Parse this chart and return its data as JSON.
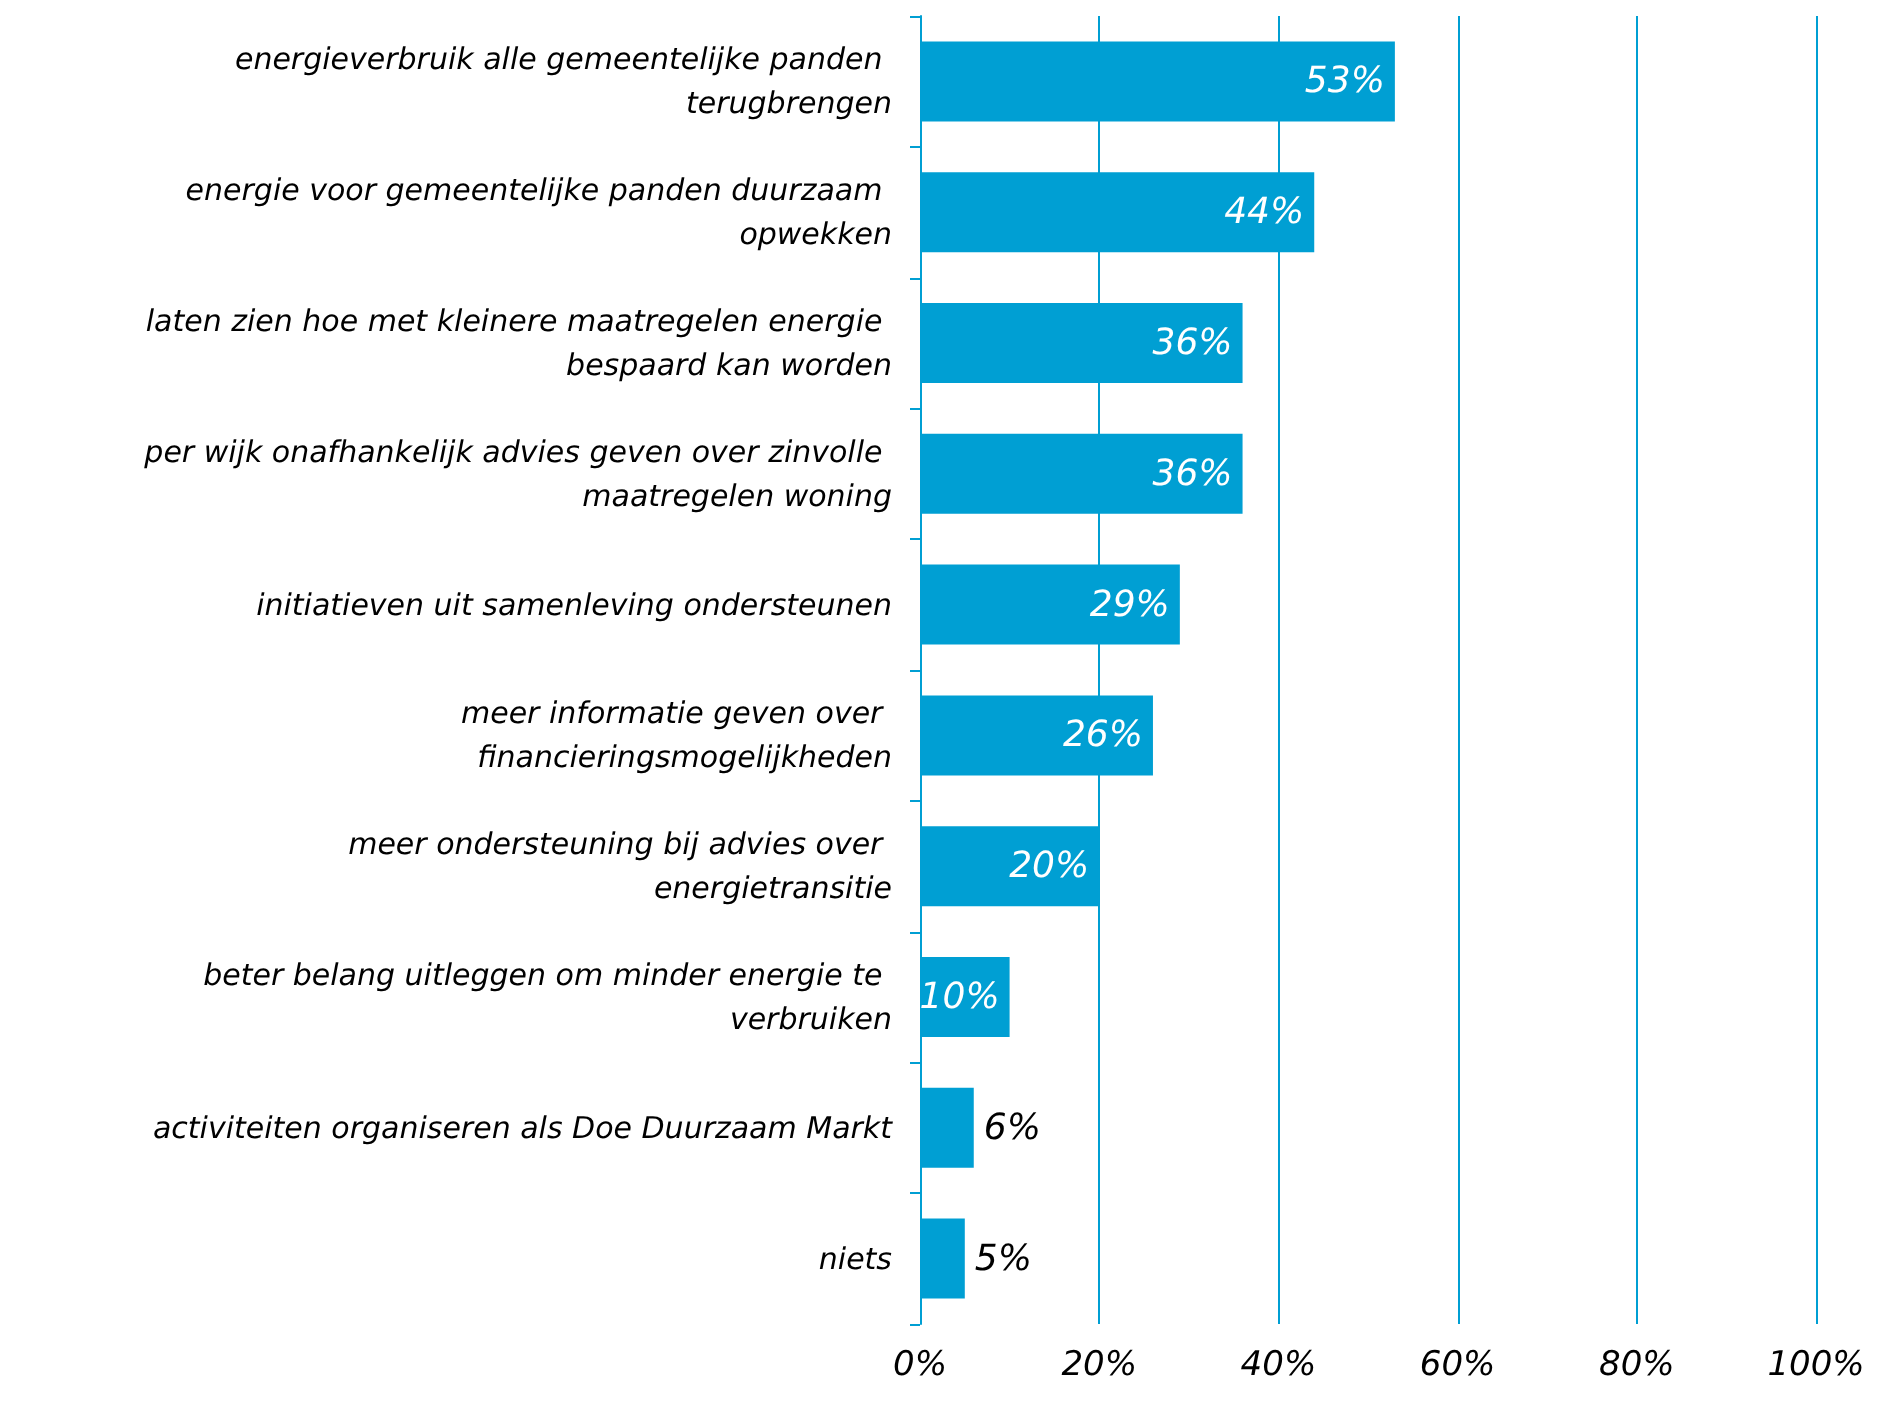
{
  "chart_data": {
    "type": "bar",
    "orientation": "horizontal",
    "categories": [
      "energieverbruik alle gemeentelijke panden terugbrengen",
      "energie voor gemeentelijke panden duurzaam opwekken",
      "laten zien hoe met kleinere maatregelen energie bespaard kan worden",
      "per wijk onafhankelijk advies geven over zinvolle maatregelen woning",
      "initiatieven uit samenleving ondersteunen",
      "meer informatie geven over financieringsmogelijkheden",
      "meer ondersteuning bij advies over energietransitie",
      "beter belang uitleggen om minder energie te verbruiken",
      "activiteiten organiseren als Doe Duurzaam Markt",
      "niets"
    ],
    "values": [
      53,
      44,
      36,
      36,
      29,
      26,
      20,
      10,
      6,
      5
    ],
    "color": "#009fd3",
    "value_labels": [
      "53%",
      "44%",
      "36%",
      "36%",
      "29%",
      "26%",
      "20%",
      "10%",
      "6%",
      "5%"
    ],
    "xlim": [
      0,
      100
    ],
    "xticks": [
      {
        "value": 0,
        "label": "0%"
      },
      {
        "value": 20,
        "label": "20%"
      },
      {
        "value": 40,
        "label": "40%"
      },
      {
        "value": 60,
        "label": "60%"
      },
      {
        "value": 80,
        "label": "80%"
      },
      {
        "value": 100,
        "label": "100%"
      }
    ],
    "grid": "x"
  }
}
